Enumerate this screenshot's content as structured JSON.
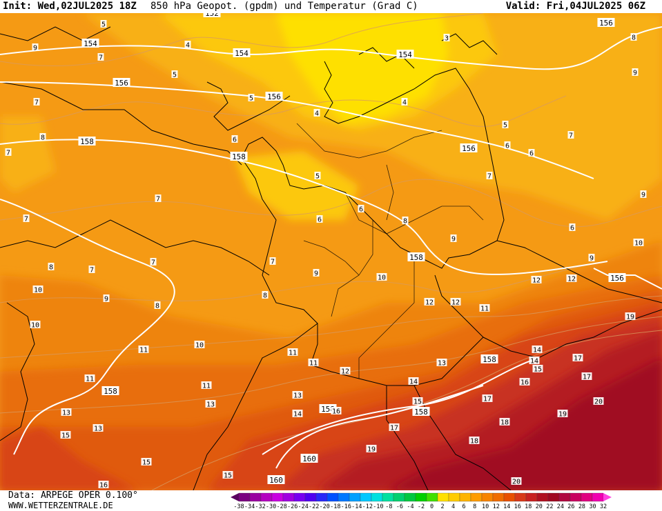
{
  "header": {
    "init": "Init: Wed,02JUL2025 18Z",
    "title": "850 hPa Geopot. (gpdm) und Temperatur (Grad C)",
    "valid": "Valid: Fri,04JUL2025 06Z"
  },
  "footer": {
    "source": "Data: ARPEGE OPER 0.100°",
    "site": "WWW.WETTERZENTRALE.DE"
  },
  "legend": {
    "ticks": [
      "-38",
      "-34",
      "-32",
      "-30",
      "-28",
      "-26",
      "-24",
      "-22",
      "-20",
      "-18",
      "-16",
      "-14",
      "-12",
      "-10",
      "-8",
      "-6",
      "-4",
      "-2",
      "0",
      "2",
      "4",
      "6",
      "8",
      "10",
      "12",
      "14",
      "16",
      "18",
      "20",
      "22",
      "24",
      "26",
      "28",
      "30",
      "32"
    ],
    "colors": [
      "#5a0060",
      "#7a0080",
      "#9a00a0",
      "#b400c0",
      "#c800e0",
      "#a000e0",
      "#7800f0",
      "#5000f0",
      "#2828f8",
      "#0050ff",
      "#0078ff",
      "#00a0ff",
      "#00c8ff",
      "#00e0e0",
      "#00e0a0",
      "#00d070",
      "#00c840",
      "#00d000",
      "#40e000",
      "#ffe000",
      "#ffcc00",
      "#ffb400",
      "#ff9c00",
      "#f88400",
      "#f06c00",
      "#e85000",
      "#d83818",
      "#c82020",
      "#b01020",
      "#a00820",
      "#b00840",
      "#c80060",
      "#e00080",
      "#f000b0",
      "#ff40e0"
    ]
  },
  "map": {
    "isohypses": [
      {
        "label": "152"
      },
      {
        "label": "154"
      },
      {
        "label": "156"
      },
      {
        "label": "158"
      },
      {
        "label": "160"
      }
    ],
    "geopot_labels": [
      "152",
      "154",
      "154",
      "154",
      "156",
      "156",
      "156",
      "156",
      "156",
      "158",
      "158",
      "158",
      "158",
      "158",
      "158",
      "158",
      "160",
      "160"
    ],
    "temp_labels": [
      "3",
      "4",
      "4",
      "4",
      "5",
      "5",
      "5",
      "5",
      "5",
      "6",
      "6",
      "6",
      "6",
      "6",
      "6",
      "7",
      "7",
      "7",
      "7",
      "7",
      "7",
      "7",
      "7",
      "7",
      "7",
      "8",
      "8",
      "8",
      "8",
      "8",
      "8",
      "9",
      "9",
      "9",
      "9",
      "9",
      "9",
      "9",
      "10",
      "10",
      "10",
      "10",
      "10",
      "11",
      "11",
      "11",
      "11",
      "11",
      "11",
      "12",
      "12",
      "12",
      "12",
      "12",
      "13",
      "13",
      "13",
      "13",
      "13",
      "14",
      "14",
      "14",
      "14",
      "15",
      "15",
      "15",
      "15",
      "15",
      "16",
      "16",
      "16",
      "17",
      "17",
      "17",
      "17",
      "18",
      "18",
      "19",
      "19",
      "19",
      "20",
      "20"
    ]
  }
}
